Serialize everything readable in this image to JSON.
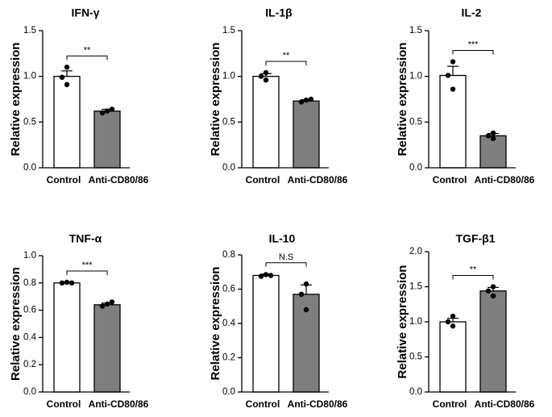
{
  "chart_data": [
    {
      "type": "bar",
      "title": "IFN-γ",
      "ylabel": "Relative expression",
      "categories": [
        "Control",
        "Anti-CD80/86"
      ],
      "values": [
        1.0,
        0.62
      ],
      "errors": [
        0.06,
        0.02
      ],
      "points": [
        [
          0.91,
          0.99,
          1.1
        ],
        [
          0.6,
          0.62,
          0.64
        ]
      ],
      "ylim": [
        0,
        1.5
      ],
      "yticks": [
        "0.0",
        "0.5",
        "1.0",
        "1.5"
      ],
      "yticks_values": [
        0,
        0.5,
        1.0,
        1.5
      ],
      "significance": "**",
      "bar_colors": [
        "#ffffff",
        "#7f7f7f"
      ]
    },
    {
      "type": "bar",
      "title": "IL-1β",
      "ylabel": "Relative expression",
      "categories": [
        "Control",
        "Anti-CD80/86"
      ],
      "values": [
        1.0,
        0.73
      ],
      "errors": [
        0.03,
        0.015
      ],
      "points": [
        [
          0.96,
          1.0,
          1.04
        ],
        [
          0.72,
          0.74,
          0.75
        ]
      ],
      "ylim": [
        0,
        1.5
      ],
      "yticks": [
        "0.0",
        "0.5",
        "1.0",
        "1.5"
      ],
      "yticks_values": [
        0,
        0.5,
        1.0,
        1.5
      ],
      "significance": "**",
      "bar_colors": [
        "#ffffff",
        "#7f7f7f"
      ]
    },
    {
      "type": "bar",
      "title": "IL-2",
      "ylabel": "Relative expression",
      "categories": [
        "Control",
        "Anti-CD80/86"
      ],
      "values": [
        1.01,
        0.35
      ],
      "errors": [
        0.1,
        0.025
      ],
      "points": [
        [
          0.86,
          1.01,
          1.16
        ],
        [
          0.32,
          0.35,
          0.38
        ]
      ],
      "ylim": [
        0,
        1.5
      ],
      "yticks": [
        "0.0",
        "0.5",
        "1.0",
        "1.5"
      ],
      "yticks_values": [
        0,
        0.5,
        1.0,
        1.5
      ],
      "significance": "***",
      "bar_colors": [
        "#ffffff",
        "#7f7f7f"
      ]
    },
    {
      "type": "bar",
      "title": "TNF-α",
      "ylabel": "Relative expression",
      "categories": [
        "Control",
        "Anti-CD80/86"
      ],
      "values": [
        0.8,
        0.64
      ],
      "errors": [
        0.005,
        0.012
      ],
      "points": [
        [
          0.8,
          0.805,
          0.8
        ],
        [
          0.63,
          0.645,
          0.66
        ]
      ],
      "ylim": [
        0,
        1.0
      ],
      "yticks": [
        "0.0",
        "0.2",
        "0.4",
        "0.6",
        "0.8",
        "1.0"
      ],
      "yticks_values": [
        0,
        0.2,
        0.4,
        0.6,
        0.8,
        1.0
      ],
      "significance": "***",
      "bar_colors": [
        "#ffffff",
        "#7f7f7f"
      ]
    },
    {
      "type": "bar",
      "title": "IL-10",
      "ylabel": "Relative expression",
      "categories": [
        "Control",
        "Anti-CD80/86"
      ],
      "values": [
        0.68,
        0.57
      ],
      "errors": [
        0.008,
        0.055
      ],
      "points": [
        [
          0.675,
          0.685,
          0.68
        ],
        [
          0.48,
          0.57,
          0.63
        ]
      ],
      "ylim": [
        0,
        0.8
      ],
      "yticks": [
        "0.0",
        "0.2",
        "0.4",
        "0.6",
        "0.8"
      ],
      "yticks_values": [
        0,
        0.2,
        0.4,
        0.6,
        0.8
      ],
      "significance": "N.S",
      "bar_colors": [
        "#ffffff",
        "#7f7f7f"
      ]
    },
    {
      "type": "bar",
      "title": "TGF-β1",
      "ylabel": "Relative expression",
      "categories": [
        "Control",
        "Anti-CD80/86"
      ],
      "values": [
        1.0,
        1.44
      ],
      "errors": [
        0.05,
        0.05
      ],
      "points": [
        [
          0.94,
          1.0,
          1.08
        ],
        [
          1.37,
          1.44,
          1.5
        ]
      ],
      "ylim": [
        0,
        2.0
      ],
      "yticks": [
        "0.0",
        "0.5",
        "1.0",
        "1.5",
        "2.0"
      ],
      "yticks_values": [
        0,
        0.5,
        1.0,
        1.5,
        2.0
      ],
      "significance": "**",
      "bar_colors": [
        "#ffffff",
        "#7f7f7f"
      ]
    }
  ]
}
